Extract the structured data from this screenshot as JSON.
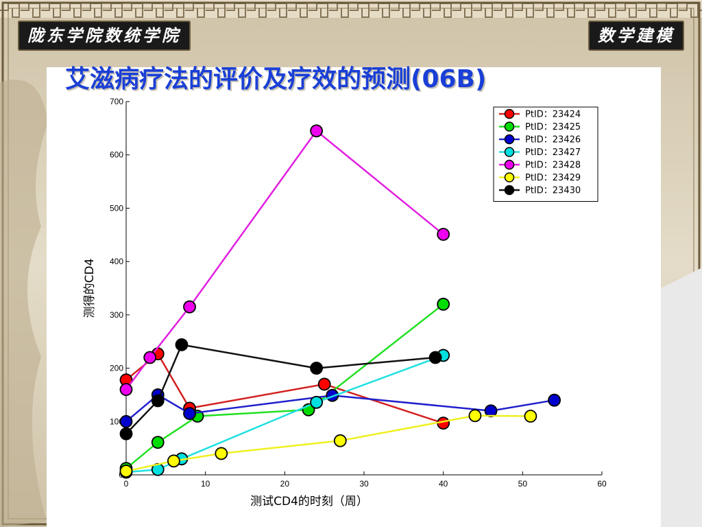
{
  "header": {
    "left_badge": "陇东学院数统学院",
    "right_badge": "数学建模",
    "title": "艾滋病疗法的评价及疗效的预测(06B)"
  },
  "colors": {
    "title": "#1a3fd6",
    "badge_bg": "#1a1a1a",
    "frame": "#6b5a3c"
  },
  "chart_data": {
    "type": "line",
    "title": "",
    "xlabel": "测试CD4的时刻（周）",
    "ylabel": "测得的CD4",
    "xlim": [
      0,
      60
    ],
    "ylim": [
      0,
      700
    ],
    "xticks": [
      0,
      10,
      20,
      30,
      40,
      50,
      60
    ],
    "yticks": [
      0,
      100,
      200,
      300,
      400,
      500,
      600,
      700
    ],
    "grid": false,
    "legend_position": "top-right",
    "series": [
      {
        "name": "PtID：23424",
        "color": "#ff0000",
        "line": "#d42020",
        "x": [
          0,
          4,
          8,
          25,
          40
        ],
        "y": [
          178,
          227,
          125,
          170,
          97
        ]
      },
      {
        "name": "PtID：23425",
        "color": "#00dd00",
        "line": "#20e020",
        "x": [
          0,
          4,
          9,
          23,
          40
        ],
        "y": [
          12,
          61,
          110,
          122,
          320
        ]
      },
      {
        "name": "PtID：23426",
        "color": "#0000cc",
        "line": "#2020cc",
        "x": [
          0,
          4,
          8,
          26,
          46,
          54
        ],
        "y": [
          100,
          150,
          115,
          149,
          120,
          140
        ]
      },
      {
        "name": "PtID：23427",
        "color": "#00e0e0",
        "line": "#20e0e0",
        "x": [
          0,
          4,
          7,
          24,
          40
        ],
        "y": [
          5,
          10,
          30,
          136,
          224
        ]
      },
      {
        "name": "PtID：23428",
        "color": "#ee00ee",
        "line": "#e020e0",
        "x": [
          0,
          3,
          8,
          24,
          40
        ],
        "y": [
          160,
          220,
          315,
          645,
          451
        ]
      },
      {
        "name": "PtID：23429",
        "color": "#ffff00",
        "line": "#f0f020",
        "x": [
          0,
          6,
          12,
          27,
          44,
          51
        ],
        "y": [
          7,
          26,
          40,
          64,
          111,
          110
        ]
      },
      {
        "name": "PtID：23430",
        "color": "#000000",
        "line": "#111111",
        "x": [
          0,
          4,
          7,
          24,
          39
        ],
        "y": [
          77,
          139,
          244,
          200,
          220
        ]
      }
    ]
  }
}
